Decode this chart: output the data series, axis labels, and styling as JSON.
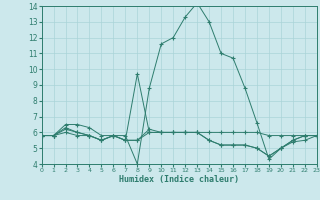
{
  "xlabel": "Humidex (Indice chaleur)",
  "xlim": [
    0,
    23
  ],
  "ylim": [
    4,
    14
  ],
  "yticks": [
    4,
    5,
    6,
    7,
    8,
    9,
    10,
    11,
    12,
    13,
    14
  ],
  "xticks": [
    0,
    1,
    2,
    3,
    4,
    5,
    6,
    7,
    8,
    9,
    10,
    11,
    12,
    13,
    14,
    15,
    16,
    17,
    18,
    19,
    20,
    21,
    22,
    23
  ],
  "bg_color": "#cce8ec",
  "line_color": "#2e7d6e",
  "grid_color": "#aad4d8",
  "lines": [
    {
      "x": [
        0,
        1,
        2,
        3,
        4,
        5,
        6,
        7,
        8,
        9,
        10,
        11,
        12,
        13,
        14,
        15,
        16,
        17,
        18,
        19,
        20,
        21,
        22,
        23
      ],
      "y": [
        5.8,
        5.8,
        6.5,
        6.5,
        6.3,
        5.8,
        5.8,
        5.8,
        4.0,
        8.8,
        11.6,
        12.0,
        13.3,
        14.2,
        13.0,
        11.0,
        10.7,
        8.8,
        6.6,
        4.3,
        5.0,
        5.4,
        5.5,
        5.8
      ]
    },
    {
      "x": [
        0,
        1,
        2,
        3,
        4,
        5,
        6,
        7,
        8,
        9,
        10,
        11,
        12,
        13,
        14,
        15,
        16,
        17,
        18,
        19,
        20,
        21,
        22,
        23
      ],
      "y": [
        5.8,
        5.8,
        6.3,
        6.0,
        5.8,
        5.5,
        5.8,
        5.5,
        9.7,
        6.0,
        6.0,
        6.0,
        6.0,
        6.0,
        6.0,
        6.0,
        6.0,
        6.0,
        6.0,
        5.8,
        5.8,
        5.8,
        5.8,
        5.8
      ]
    },
    {
      "x": [
        0,
        1,
        2,
        3,
        4,
        5,
        6,
        7,
        8,
        9,
        10,
        11,
        12,
        13,
        14,
        15,
        16,
        17,
        18,
        19,
        20,
        21,
        22,
        23
      ],
      "y": [
        5.8,
        5.8,
        6.2,
        6.0,
        5.8,
        5.5,
        5.8,
        5.5,
        5.5,
        6.2,
        6.0,
        6.0,
        6.0,
        6.0,
        5.5,
        5.2,
        5.2,
        5.2,
        5.0,
        4.5,
        5.0,
        5.5,
        5.8,
        5.8
      ]
    },
    {
      "x": [
        0,
        1,
        2,
        3,
        4,
        5,
        6,
        7,
        8,
        9,
        10,
        11,
        12,
        13,
        14,
        15,
        16,
        17,
        18,
        19,
        20,
        21,
        22,
        23
      ],
      "y": [
        5.8,
        5.8,
        6.0,
        5.8,
        5.8,
        5.5,
        5.8,
        5.5,
        5.5,
        6.0,
        6.0,
        6.0,
        6.0,
        6.0,
        5.5,
        5.2,
        5.2,
        5.2,
        5.0,
        4.5,
        5.0,
        5.5,
        5.8,
        5.8
      ]
    }
  ]
}
